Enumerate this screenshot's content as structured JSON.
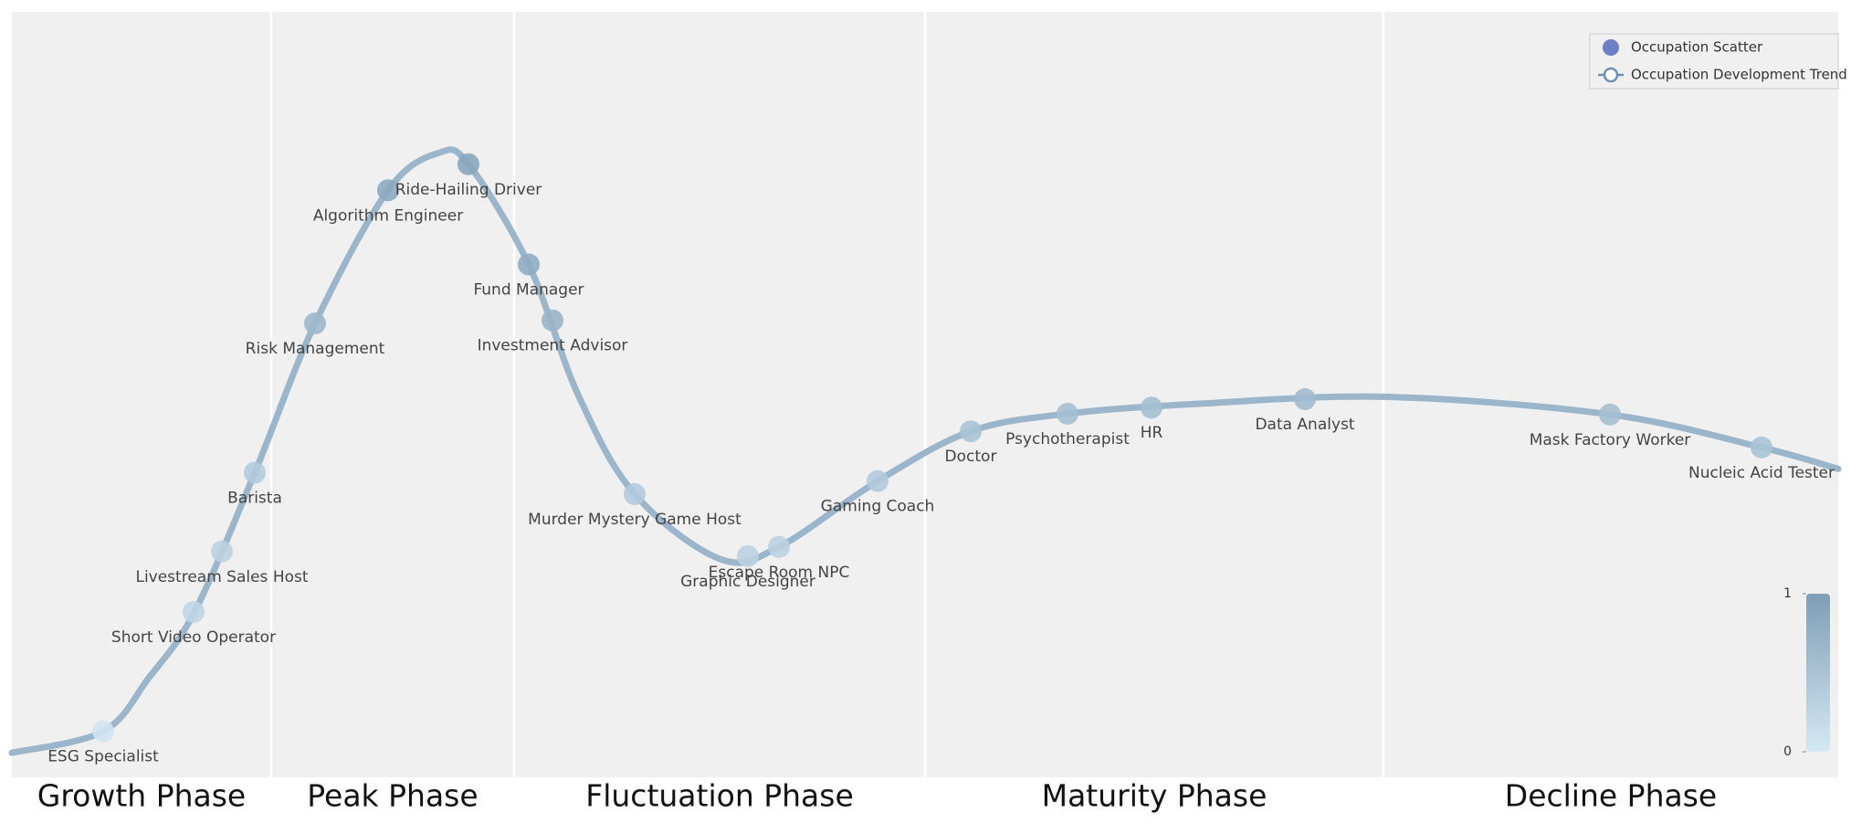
{
  "chart_data": {
    "type": "scatter",
    "series": [
      {
        "name": "Occupation Scatter",
        "color": "#6f7fc4",
        "labels": [
          "ESG Specialist",
          "Short Video Operator",
          "Livestream Sales Host",
          "Barista",
          "Risk Management",
          "Algorithm Engineer",
          "Ride-Hailing Driver",
          "Fund Manager",
          "Investment Advisor",
          "Murder Mystery Game Host",
          "Graphic Designer",
          "Escape Room NPC",
          "Gaming Coach",
          "Doctor",
          "Psychotherapist",
          "HR",
          "Data Analyst",
          "Mask Factory Worker",
          "Nucleic Acid Tester"
        ],
        "x": [
          5.0,
          9.95,
          11.5,
          13.3,
          16.6,
          20.6,
          25.0,
          28.3,
          29.6,
          34.1,
          40.3,
          42.0,
          47.4,
          52.5,
          57.8,
          62.4,
          70.8,
          87.5,
          95.8
        ],
        "values": [
          6.0,
          21.6,
          29.5,
          39.8,
          59.3,
          76.7,
          80.1,
          67.0,
          59.7,
          37.0,
          28.9,
          30.1,
          38.7,
          45.2,
          47.5,
          48.3,
          49.4,
          47.4,
          43.1
        ],
        "color_values": [
          0.05,
          0.25,
          0.3,
          0.4,
          0.65,
          0.85,
          0.9,
          0.8,
          0.7,
          0.4,
          0.3,
          0.3,
          0.4,
          0.5,
          0.55,
          0.55,
          0.6,
          0.55,
          0.5
        ]
      },
      {
        "name": "Occupation Development Trend",
        "color": "#9bb5ca",
        "x": [
          0,
          5,
          7.5,
          10,
          13.3,
          16.6,
          20.6,
          23.4,
          25,
          28.3,
          31,
          34.1,
          38.8,
          42,
          47.4,
          52.5,
          57.8,
          65,
          75.3,
          87.5,
          95.8,
          100
        ],
        "values": [
          3.2,
          6.0,
          13.0,
          21.6,
          39.8,
          59.3,
          76.7,
          81.6,
          80.1,
          67.0,
          50.0,
          37.0,
          28.5,
          30.1,
          38.7,
          45.2,
          47.5,
          48.8,
          49.7,
          47.4,
          43.1,
          40.3
        ]
      }
    ],
    "xlim": [
      0,
      100
    ],
    "ylim": [
      0,
      100
    ],
    "phases": [
      "Growth Phase",
      "Peak Phase",
      "Fluctuation Phase",
      "Maturity Phase",
      "Decline Phase"
    ],
    "phase_boundaries": [
      0,
      14.2,
      27.5,
      50.0,
      75.1,
      100
    ],
    "colorbar": {
      "lim": [
        0,
        1
      ],
      "ticks": [
        0,
        1
      ],
      "colors": [
        "#d4e8f5",
        "#7f9db5"
      ]
    },
    "legend": "upper right"
  }
}
